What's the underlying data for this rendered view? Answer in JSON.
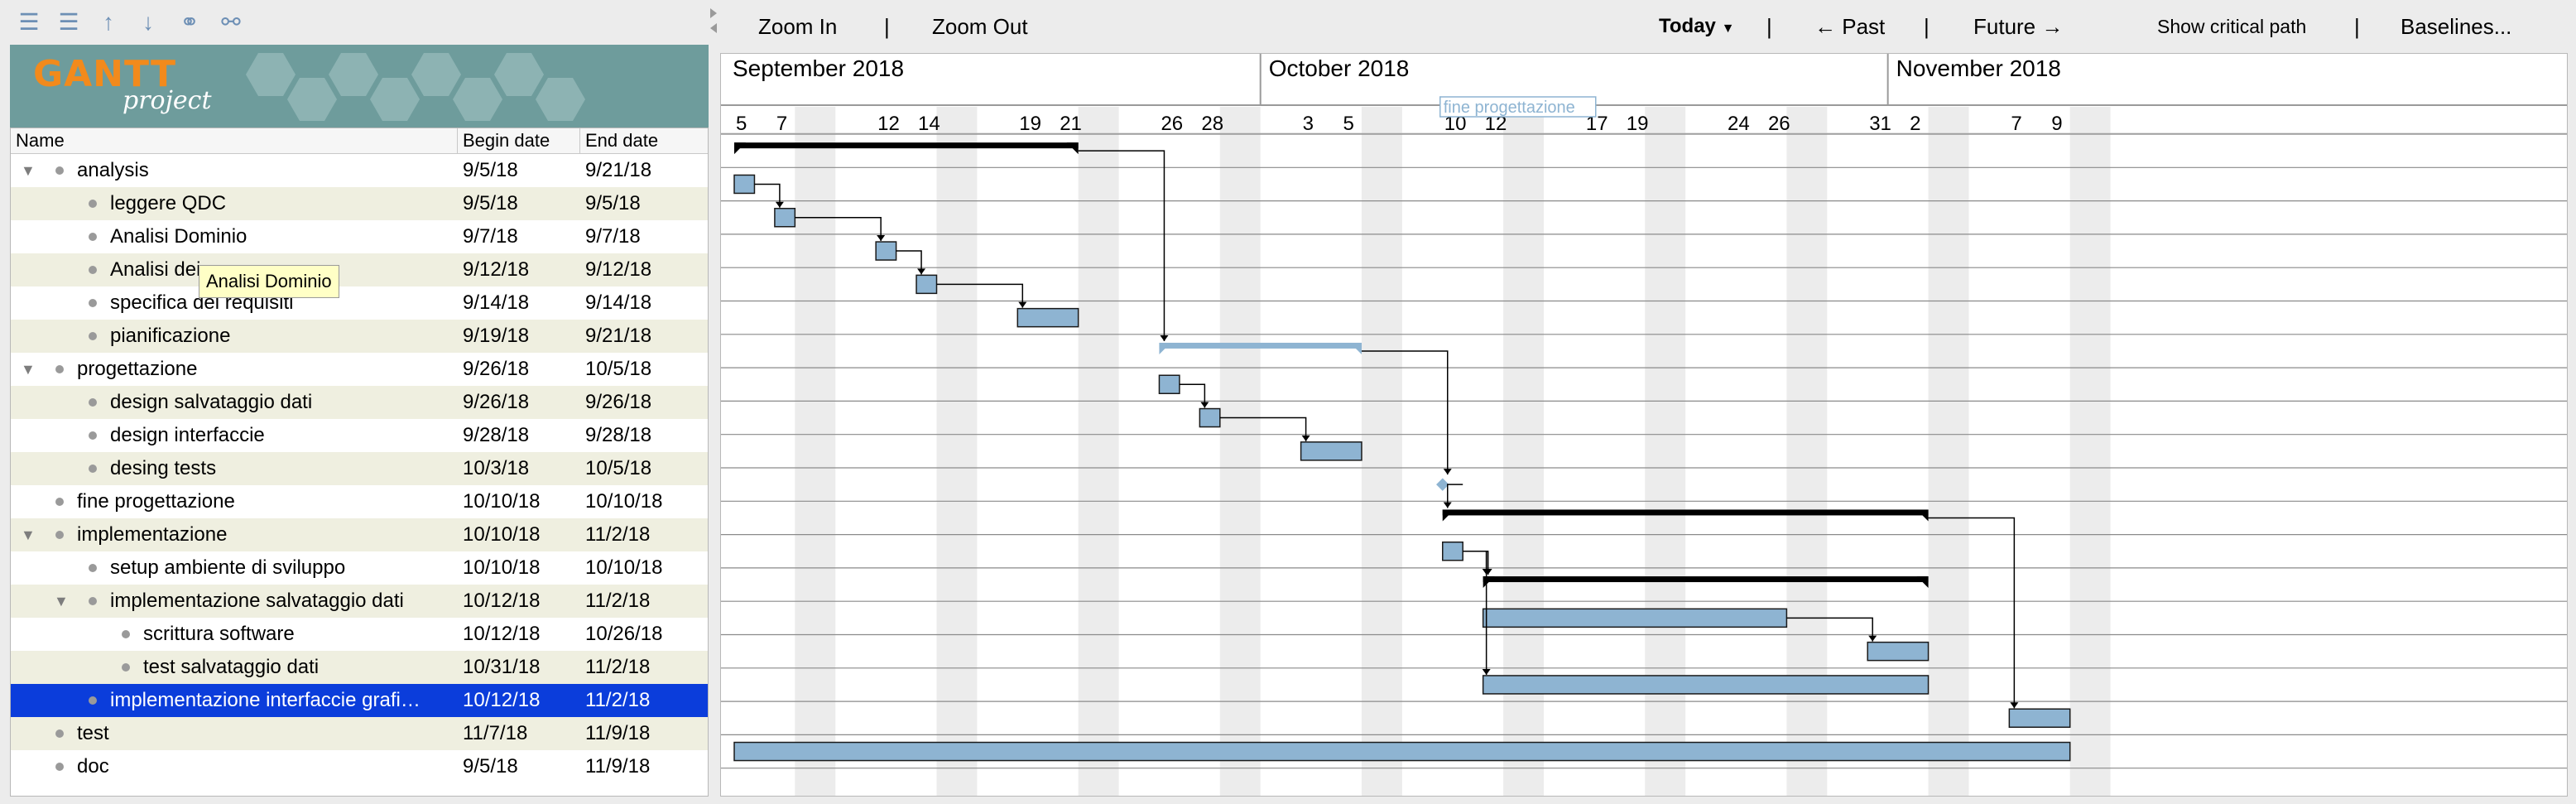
{
  "toolbar_left": {
    "icons": [
      "unindent-icon",
      "indent-icon",
      "move-up-icon",
      "move-down-icon",
      "link-icon",
      "unlink-icon"
    ]
  },
  "logo": {
    "main": "GANTT",
    "sub": "project"
  },
  "tree": {
    "columns": {
      "name": "Name",
      "begin": "Begin date",
      "end": "End date"
    },
    "rows": [
      {
        "name": "analysis",
        "begin": "9/5/18",
        "end": "9/21/18",
        "level": 0,
        "expander": "▼"
      },
      {
        "name": "leggere QDC",
        "begin": "9/5/18",
        "end": "9/5/18",
        "level": 1
      },
      {
        "name": "Analisi Dominio",
        "begin": "9/7/18",
        "end": "9/7/18",
        "level": 1
      },
      {
        "name": "Analisi dei",
        "begin": "9/12/18",
        "end": "9/12/18",
        "level": 1
      },
      {
        "name": "specifica dei requisiti",
        "begin": "9/14/18",
        "end": "9/14/18",
        "level": 1
      },
      {
        "name": "pianificazione",
        "begin": "9/19/18",
        "end": "9/21/18",
        "level": 1
      },
      {
        "name": "progettazione",
        "begin": "9/26/18",
        "end": "10/5/18",
        "level": 0,
        "expander": "▼"
      },
      {
        "name": "design salvataggio dati",
        "begin": "9/26/18",
        "end": "9/26/18",
        "level": 1
      },
      {
        "name": "design interfaccie",
        "begin": "9/28/18",
        "end": "9/28/18",
        "level": 1
      },
      {
        "name": "desing tests",
        "begin": "10/3/18",
        "end": "10/5/18",
        "level": 1
      },
      {
        "name": "fine progettazione",
        "begin": "10/10/18",
        "end": "10/10/18",
        "level": 0
      },
      {
        "name": "implementazione",
        "begin": "10/10/18",
        "end": "11/2/18",
        "level": 0,
        "expander": "▼"
      },
      {
        "name": "setup ambiente di sviluppo",
        "begin": "10/10/18",
        "end": "10/10/18",
        "level": 1
      },
      {
        "name": "implementazione salvataggio dati",
        "begin": "10/12/18",
        "end": "11/2/18",
        "level": 1,
        "expander": "▼"
      },
      {
        "name": "scrittura software",
        "begin": "10/12/18",
        "end": "10/26/18",
        "level": 2
      },
      {
        "name": "test salvataggio dati",
        "begin": "10/31/18",
        "end": "11/2/18",
        "level": 2
      },
      {
        "name": "implementazione interfaccie grafi…",
        "begin": "10/12/18",
        "end": "11/2/18",
        "level": 1,
        "selected": true
      },
      {
        "name": "test",
        "begin": "11/7/18",
        "end": "11/9/18",
        "level": 0
      },
      {
        "name": "doc",
        "begin": "9/5/18",
        "end": "11/9/18",
        "level": 0
      }
    ]
  },
  "tooltip": {
    "text": "Analisi Dominio"
  },
  "toolbar_right": {
    "zoom_in": "Zoom In",
    "zoom_out": "Zoom Out",
    "today": "Today",
    "past": "← Past",
    "future": "Future →",
    "critical": "Show critical path",
    "baselines": "Baselines..."
  },
  "timeline": {
    "months": [
      "September 2018",
      "October 2018",
      "November 2018"
    ],
    "days": [
      "5",
      "7",
      "12",
      "14",
      "19",
      "21",
      "26",
      "28",
      "3",
      "5",
      "10",
      "12",
      "17",
      "19",
      "24",
      "26",
      "31",
      "2",
      "7",
      "9"
    ],
    "milestone_label": "fine progettazione"
  },
  "colors": {
    "bar_fill": "#8eb4d2",
    "bar_stroke": "#1a1a1a",
    "summary": "#000000",
    "collapsed_summary": "#8eb4d2",
    "selection": "#0b3ddb",
    "weekend": "#ececec"
  }
}
